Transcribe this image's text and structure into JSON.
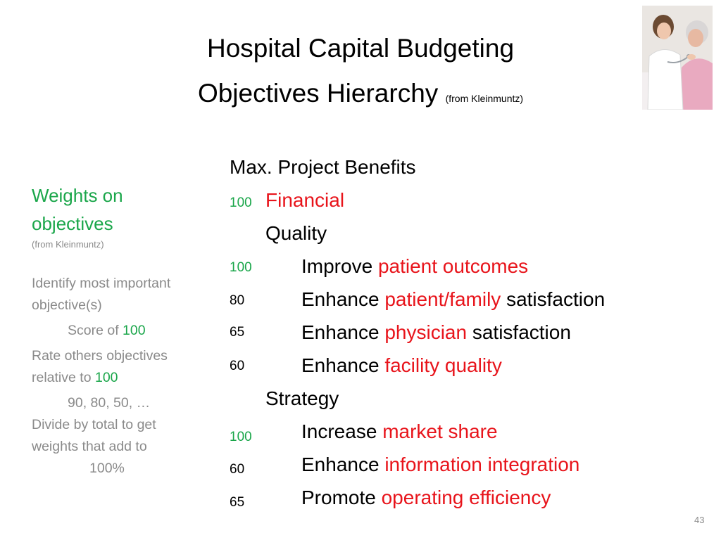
{
  "title": {
    "line1": "Hospital Capital Budgeting",
    "line2": "Objectives Hierarchy",
    "line2_note": "(from Kleinmuntz)"
  },
  "sidebar": {
    "heading": "Weights on objectives",
    "heading_line1": "Weights on",
    "heading_line2": "objectives",
    "source": "(from Kleinmuntz)",
    "step1_line1": "Identify most important",
    "step1_line2": "objective(s)",
    "score_prefix": "Score of",
    "score_value": "100",
    "step2_line1": "Rate others objectives",
    "step2_line2_prefix": "relative to",
    "step2_line2_value": "100",
    "example_ratings": "90, 80, 50, …",
    "step3_line1": "Divide by total to get",
    "step3_line2": "weights that add to",
    "step3_line3": "100%"
  },
  "hierarchy": {
    "root": "Max. Project Benefits",
    "financial": {
      "weight": "100",
      "label": "Financial"
    },
    "quality_group": "Quality",
    "quality_items": [
      {
        "weight": "100",
        "prefix": "Improve",
        "highlight": "patient outcomes",
        "suffix": ""
      },
      {
        "weight": "80",
        "prefix": "Enhance",
        "highlight": "patient/family",
        "suffix": "satisfaction"
      },
      {
        "weight": "65",
        "prefix": "Enhance",
        "highlight": "physician",
        "suffix": "satisfaction"
      },
      {
        "weight": "60",
        "prefix": "Enhance",
        "highlight": "facility quality",
        "suffix": ""
      }
    ],
    "strategy_group": "Strategy",
    "strategy_items": [
      {
        "weight": "100",
        "prefix": "Increase",
        "highlight": "market share",
        "suffix": ""
      },
      {
        "weight": "60",
        "prefix": "Enhance",
        "highlight": "information integration",
        "suffix": ""
      },
      {
        "weight": "65",
        "prefix": "Promote",
        "highlight": "operating efficiency",
        "suffix": ""
      }
    ]
  },
  "page_number": "43",
  "colors": {
    "accent_green": "#1aa64a",
    "accent_red": "#e8141b",
    "muted_gray": "#8a8a8a"
  }
}
